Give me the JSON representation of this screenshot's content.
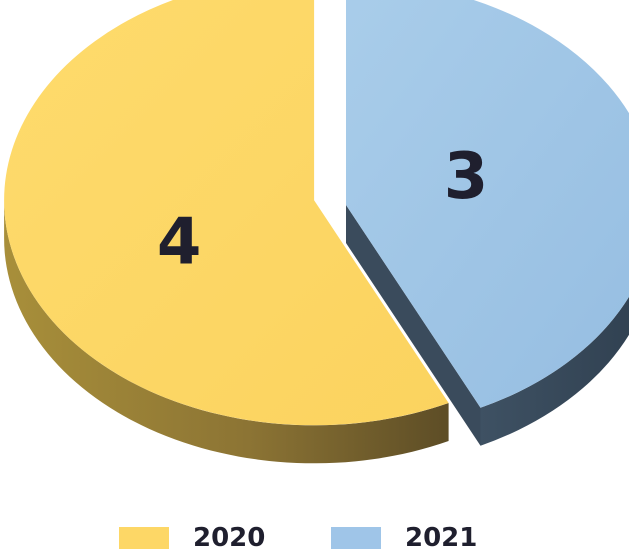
{
  "chart_data": {
    "type": "pie",
    "categories": [
      "2020",
      "2021"
    ],
    "values": [
      4,
      3
    ],
    "data_labels": [
      "4",
      "3"
    ],
    "colors": [
      "#fdd766",
      "#9fc5e8"
    ],
    "exploded_slice": "2021",
    "style": "3d",
    "legend_placement": "bottom",
    "legend": [
      "2020",
      "2021"
    ]
  }
}
